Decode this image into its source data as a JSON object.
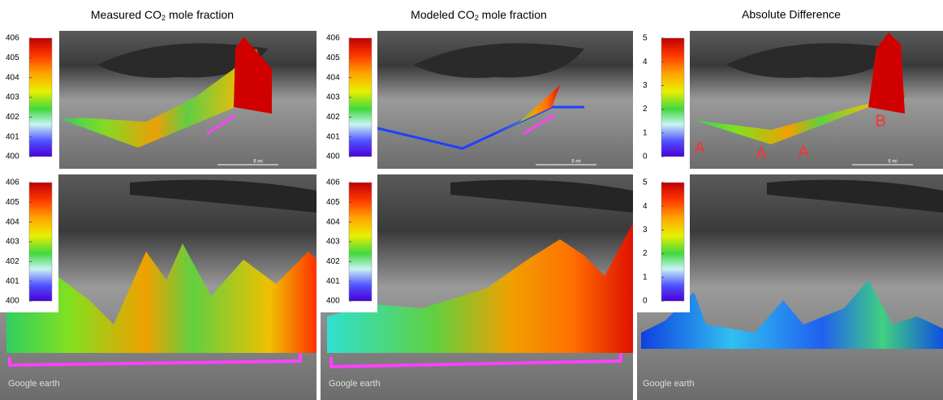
{
  "titles": [
    {
      "main": "Measured CO",
      "sub": "2",
      "rest": " mole fraction"
    },
    {
      "main": "Modeled CO",
      "sub": "2",
      "rest": " mole fraction"
    },
    {
      "main": "Absolute Difference"
    }
  ],
  "panels": [
    {
      "colorbar_ticks": [
        400,
        401,
        402,
        403,
        404,
        405,
        406
      ],
      "scale": "6 mi"
    },
    {
      "colorbar_ticks": [
        400,
        401,
        402,
        403,
        404,
        405,
        406
      ],
      "scale": "6 mi"
    },
    {
      "colorbar_ticks": [
        0,
        1,
        2,
        3,
        4,
        5
      ],
      "scale": "6 mi"
    },
    {
      "colorbar_ticks": [
        400,
        401,
        402,
        403,
        404,
        405,
        406
      ],
      "logo": "Google earth"
    },
    {
      "colorbar_ticks": [
        400,
        401,
        402,
        403,
        404,
        405,
        406
      ],
      "logo": "Google earth"
    },
    {
      "colorbar_ticks": [
        0,
        1,
        2,
        3,
        4,
        5
      ],
      "logo": "Google earth"
    }
  ],
  "annotations": [
    "A",
    "A",
    "A",
    "B"
  ]
}
